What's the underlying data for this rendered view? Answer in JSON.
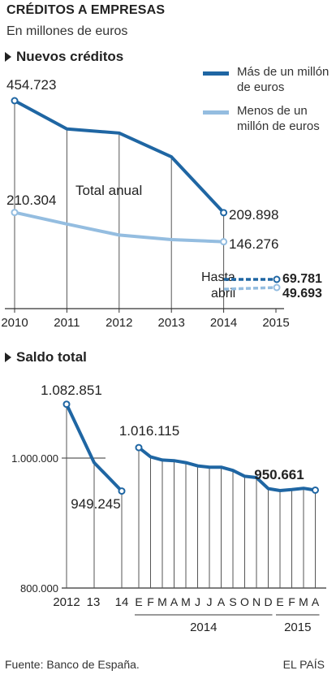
{
  "header": {
    "title": "CRÉDITOS A EMPRESAS",
    "subtitle": "En millones de euros",
    "section1": "Nuevos créditos",
    "section2": "Saldo total"
  },
  "legend": {
    "large": "Más de un millón de euros",
    "small": "Menos de un millón de euros"
  },
  "colors": {
    "dark": "#1f66a3",
    "light": "#94bde0",
    "axis": "#333333",
    "grid": "#555555"
  },
  "footer": {
    "source": "Fuente: Banco de España.",
    "brand": "EL PAÍS"
  },
  "chart_data": [
    {
      "type": "line",
      "categories": [
        "2010",
        "2011",
        "2012",
        "2013",
        "2014",
        "2015"
      ],
      "series": [
        {
          "name": "Más de un millón de euros",
          "values": [
            454723,
            393000,
            384000,
            332000,
            209898,
            null
          ]
        },
        {
          "name": "Menos de un millón de euros",
          "values": [
            210304,
            185000,
            161000,
            151000,
            146276,
            null
          ]
        }
      ],
      "partial": {
        "label": "Hasta abril",
        "large": "69.781",
        "small": "49.693",
        "large_value": 69781,
        "small_value": 49693
      },
      "labels": {
        "first_large": "454.723",
        "last_large": "209.898",
        "first_small": "210.304",
        "last_small": "146.276",
        "annotation": "Total anual"
      },
      "ylim": [
        0,
        520000
      ]
    },
    {
      "type": "line",
      "ylabels": [
        "1.000.000",
        "800.000"
      ],
      "yticks": [
        1000000,
        800000
      ],
      "ylim": [
        800000,
        1120000
      ],
      "annual": {
        "categories": [
          "2012",
          "13",
          "14"
        ],
        "values": [
          1082851,
          993000,
          949245
        ]
      },
      "monthly": {
        "categories": [
          "E",
          "F",
          "M",
          "A",
          "M",
          "J",
          "J",
          "A",
          "S",
          "O",
          "N",
          "D",
          "E",
          "F",
          "M",
          "A"
        ],
        "values": [
          1016115,
          1002000,
          997000,
          996000,
          993000,
          988000,
          986000,
          986000,
          981000,
          972000,
          970000,
          953000,
          950000,
          951500,
          953500,
          950661
        ],
        "groups": [
          {
            "label": "2014",
            "from": 0,
            "to": 11
          },
          {
            "label": "2015",
            "from": 12,
            "to": 15
          }
        ]
      },
      "labels": {
        "annual_first": "1.082.851",
        "annual_last": "949.245",
        "monthly_first": "1.016.115",
        "monthly_last": "950.661"
      }
    }
  ]
}
